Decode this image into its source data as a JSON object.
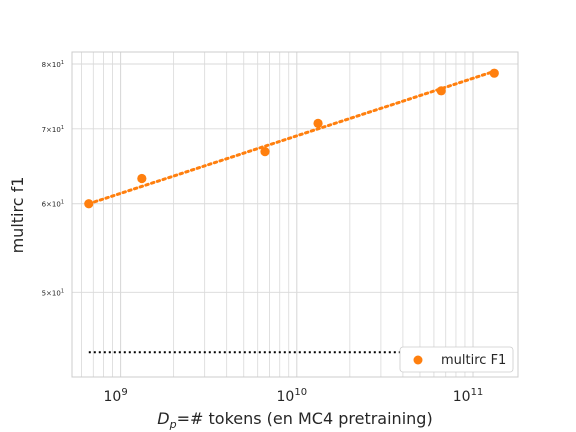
{
  "chart_data": {
    "type": "scatter",
    "xlabel": "D_p=# tokens (en MC4 pretraining)",
    "ylabel": "multirc f1",
    "xscale": "log",
    "yscale": "log",
    "xlim": [
      530000000,
      180000000000
    ],
    "ylim": [
      42,
      82
    ],
    "grid": true,
    "legend_position": "lower-right",
    "x_tick_labels": [
      {
        "base": "10",
        "exp": "9",
        "value": 1000000000
      },
      {
        "base": "10",
        "exp": "10",
        "value": 10000000000
      },
      {
        "base": "10",
        "exp": "11",
        "value": 100000000000
      }
    ],
    "y_tick_labels": [
      {
        "mant": "5",
        "base": "10",
        "exp": "1",
        "value": 50
      },
      {
        "mant": "6",
        "base": "10",
        "exp": "1",
        "value": 60
      },
      {
        "mant": "7",
        "base": "10",
        "exp": "1",
        "value": 70
      },
      {
        "mant": "8",
        "base": "10",
        "exp": "1",
        "value": 80
      }
    ],
    "series": [
      {
        "name": "multirc F1",
        "color": "#ff7f0e",
        "points": [
          {
            "x": 660000000,
            "y": 60.0
          },
          {
            "x": 1320000000,
            "y": 63.2
          },
          {
            "x": 6600000000,
            "y": 66.8
          },
          {
            "x": 13200000000,
            "y": 70.8
          },
          {
            "x": 66000000000,
            "y": 75.7
          },
          {
            "x": 132000000000,
            "y": 78.5
          }
        ],
        "fit": [
          {
            "x": 660000000,
            "y": 60.0
          },
          {
            "x": 132000000000,
            "y": 78.8
          }
        ]
      }
    ],
    "baseline": {
      "y": 44.2,
      "x_start": 660000000,
      "x_end": 132000000000,
      "color": "#000000"
    }
  }
}
